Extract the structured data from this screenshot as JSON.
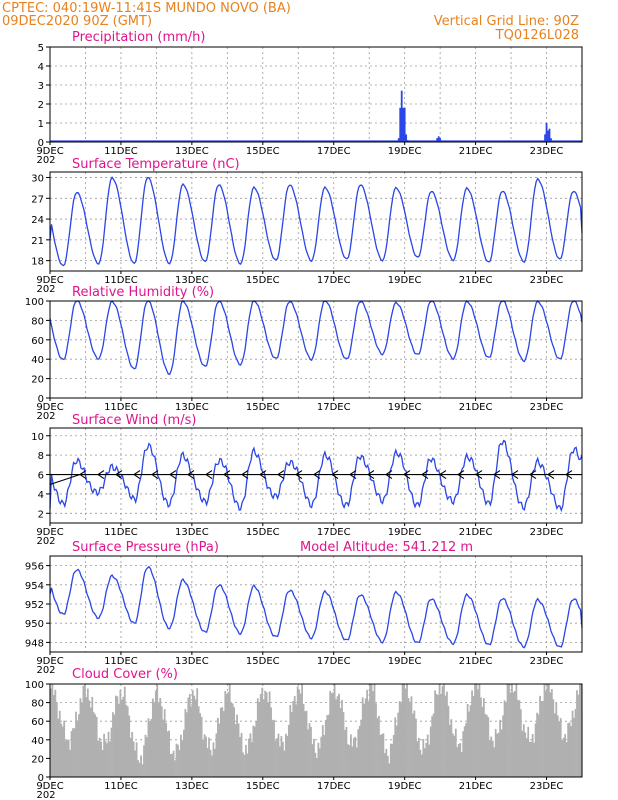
{
  "header": {
    "line1_left": "CPTEC:   040:19W-11:41S   MUNDO NOVO (BA)",
    "line2_left": "09DEC2020 90Z (GMT)",
    "line2_right": "Vertical Grid Line: 90Z",
    "line3_right": "TQ0126L028"
  },
  "colors": {
    "header": "#e8821e",
    "panel_title": "#e0148c",
    "series": "#2a46e6",
    "cloud_fill": "#b0b0b0",
    "wind_arrow": "#000000"
  },
  "x_axis": {
    "labels": [
      "9DEC",
      "11DEC",
      "13DEC",
      "15DEC",
      "17DEC",
      "19DEC",
      "21DEC",
      "23DEC"
    ],
    "under_label": "202"
  },
  "chart_data": [
    {
      "id": "precip",
      "type": "bar",
      "title": "Precipitation (mm/h)",
      "ylim": [
        0,
        5
      ],
      "yticks": [
        0,
        1,
        2,
        3,
        4,
        5
      ],
      "xlim_hours": [
        0,
        360
      ],
      "bars": [
        {
          "x": 236,
          "value": 0.2
        },
        {
          "x": 237,
          "value": 1.8
        },
        {
          "x": 238,
          "value": 2.7
        },
        {
          "x": 239,
          "value": 1.8
        },
        {
          "x": 240,
          "value": 1.8
        },
        {
          "x": 241,
          "value": 0.4
        },
        {
          "x": 242,
          "value": 0.1
        },
        {
          "x": 262,
          "value": 0.2
        },
        {
          "x": 263,
          "value": 0.3
        },
        {
          "x": 264,
          "value": 0.2
        },
        {
          "x": 335,
          "value": 0.4
        },
        {
          "x": 336,
          "value": 1.0
        },
        {
          "x": 337,
          "value": 0.6
        },
        {
          "x": 338,
          "value": 0.7
        },
        {
          "x": 339,
          "value": 0.2
        },
        {
          "x": 344,
          "value": 0.05
        }
      ]
    },
    {
      "id": "temp",
      "type": "line",
      "title": "Surface Temperature (nC)",
      "ylim": [
        16.5,
        30.8
      ],
      "yticks": [
        18,
        21,
        24,
        27,
        30
      ],
      "xlim_hours": [
        0,
        360
      ],
      "days": [
        {
          "min": 17.3,
          "max": 27.8
        },
        {
          "min": 17.5,
          "max": 30.0
        },
        {
          "min": 17.6,
          "max": 30.0
        },
        {
          "min": 17.6,
          "max": 29.0
        },
        {
          "min": 17.8,
          "max": 29.0
        },
        {
          "min": 17.6,
          "max": 28.5
        },
        {
          "min": 18.0,
          "max": 29.0
        },
        {
          "min": 18.0,
          "max": 28.5
        },
        {
          "min": 18.2,
          "max": 29.0
        },
        {
          "min": 18.0,
          "max": 28.5
        },
        {
          "min": 18.5,
          "max": 28.0
        },
        {
          "min": 18.0,
          "max": 28.5
        },
        {
          "min": 17.8,
          "max": 28.0
        },
        {
          "min": 17.8,
          "max": 29.8
        },
        {
          "min": 18.2,
          "max": 28.0
        },
        {
          "min": 18.5,
          "max": 28.2
        }
      ],
      "start": 21.0,
      "end": 22.0
    },
    {
      "id": "rh",
      "type": "line",
      "title": "Relative Humidity (%)",
      "ylim": [
        0,
        100
      ],
      "yticks": [
        0,
        20,
        40,
        60,
        80,
        100
      ],
      "xlim_hours": [
        0,
        360
      ],
      "days": [
        {
          "min": 40,
          "max": 100
        },
        {
          "min": 40,
          "max": 100
        },
        {
          "min": 30,
          "max": 100
        },
        {
          "min": 25,
          "max": 100
        },
        {
          "min": 32,
          "max": 100
        },
        {
          "min": 35,
          "max": 100
        },
        {
          "min": 40,
          "max": 100
        },
        {
          "min": 40,
          "max": 100
        },
        {
          "min": 40,
          "max": 100
        },
        {
          "min": 45,
          "max": 98
        },
        {
          "min": 45,
          "max": 100
        },
        {
          "min": 40,
          "max": 100
        },
        {
          "min": 42,
          "max": 100
        },
        {
          "min": 38,
          "max": 100
        },
        {
          "min": 40,
          "max": 100
        },
        {
          "min": 42,
          "max": 100
        }
      ],
      "start": 82,
      "end": 78
    },
    {
      "id": "wind",
      "type": "line",
      "title": "Surface Wind (m/s)",
      "ylim": [
        1,
        10.8
      ],
      "yticks": [
        2,
        4,
        6,
        8,
        10
      ],
      "xlim_hours": [
        0,
        360
      ],
      "days": [
        {
          "min": 3.2,
          "max": 7.2
        },
        {
          "min": 4.0,
          "max": 7.0
        },
        {
          "min": 3.5,
          "max": 8.8
        },
        {
          "min": 3.0,
          "max": 8.0
        },
        {
          "min": 3.0,
          "max": 7.5
        },
        {
          "min": 2.8,
          "max": 8.2
        },
        {
          "min": 3.5,
          "max": 7.5
        },
        {
          "min": 3.0,
          "max": 7.8
        },
        {
          "min": 2.8,
          "max": 8.0
        },
        {
          "min": 3.2,
          "max": 8.2
        },
        {
          "min": 3.0,
          "max": 7.5
        },
        {
          "min": 3.0,
          "max": 8.0
        },
        {
          "min": 3.2,
          "max": 9.2
        },
        {
          "min": 2.5,
          "max": 7.5
        },
        {
          "min": 2.5,
          "max": 8.5
        },
        {
          "min": 3.0,
          "max": 8.5
        }
      ],
      "start": 2.5,
      "end": 8.0,
      "barb_level": 6.0
    },
    {
      "id": "press",
      "type": "line",
      "title": "Surface Pressure (hPa)",
      "ylim": [
        947.0,
        957.0
      ],
      "yticks": [
        948,
        950,
        952,
        954,
        956
      ],
      "xlim_hours": [
        0,
        360
      ],
      "days": [
        {
          "min": 951.0,
          "max": 955.5
        },
        {
          "min": 950.5,
          "max": 955.0
        },
        {
          "min": 950.0,
          "max": 955.8
        },
        {
          "min": 949.5,
          "max": 954.5
        },
        {
          "min": 949.0,
          "max": 954.0
        },
        {
          "min": 949.0,
          "max": 953.8
        },
        {
          "min": 948.5,
          "max": 953.5
        },
        {
          "min": 948.5,
          "max": 953.2
        },
        {
          "min": 948.2,
          "max": 953.0
        },
        {
          "min": 948.0,
          "max": 953.2
        },
        {
          "min": 948.0,
          "max": 952.5
        },
        {
          "min": 947.8,
          "max": 953.0
        },
        {
          "min": 947.8,
          "max": 952.5
        },
        {
          "min": 947.5,
          "max": 952.5
        },
        {
          "min": 947.5,
          "max": 952.5
        },
        {
          "min": 947.5,
          "max": 952.0
        }
      ],
      "start": 953.0,
      "end": 949.5,
      "altitude_label": "Model Altitude: 541.212 m"
    },
    {
      "id": "cloud",
      "type": "area",
      "title": "Cloud Cover (%)",
      "ylim": [
        0,
        100
      ],
      "yticks": [
        0,
        20,
        40,
        60,
        80,
        100
      ],
      "xlim_hours": [
        0,
        360
      ],
      "days": [
        {
          "low": 40,
          "high": 95
        },
        {
          "low": 35,
          "high": 92
        },
        {
          "low": 20,
          "high": 90
        },
        {
          "low": 25,
          "high": 88
        },
        {
          "low": 30,
          "high": 92
        },
        {
          "low": 30,
          "high": 90
        },
        {
          "low": 35,
          "high": 95
        },
        {
          "low": 30,
          "high": 92
        },
        {
          "low": 35,
          "high": 95
        },
        {
          "low": 25,
          "high": 100
        },
        {
          "low": 30,
          "high": 98
        },
        {
          "low": 35,
          "high": 100
        },
        {
          "low": 40,
          "high": 100
        },
        {
          "low": 40,
          "high": 100
        },
        {
          "low": 45,
          "high": 100
        },
        {
          "low": 50,
          "high": 100
        }
      ]
    }
  ]
}
